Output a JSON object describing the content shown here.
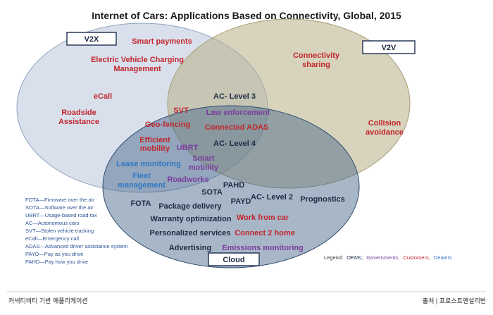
{
  "title": "Internet of Cars: Applications Based on Connectivity, Global, 2015",
  "circles": {
    "v2x": "V2X",
    "v2v": "V2V",
    "cloud": "Cloud"
  },
  "labels": {
    "smart_payments": "Smart payments",
    "ev_charging_1": "Electric Vehicle Charging",
    "ev_charging_2": "Management",
    "ecall": "eCall",
    "roadside_1": "Roadside",
    "roadside_2": "Assistance",
    "connectivity_1": "Connectivity",
    "connectivity_2": "sharing",
    "ac_level3": "AC- Level 3",
    "svt": "SVT",
    "law_enforcement": "Law enforcement",
    "geo_fencing": "Geo-fencing",
    "connected_adas": "Connected ADAS",
    "collision_1": "Collision",
    "collision_2": "avoidance",
    "efficient_1": "Efficient",
    "efficient_2": "mobility",
    "ubrt": "UBRT",
    "ac_level4": "AC- Level 4",
    "smart_mobility_1": "Smart",
    "smart_mobility_2": "mobility",
    "lease_monitoring": "Lease monitoring",
    "fleet_1": "Fleet",
    "fleet_2": "management",
    "roadworks": "Roadworks",
    "pahd": "PAHD",
    "sota": "SOTA",
    "payd": "PAYD",
    "ac_level2": "AC- Level 2",
    "prognostics": "Prognostics",
    "fota": "FOTA",
    "package_delivery": "Package delivery",
    "warranty": "Warranty optimization",
    "work_from_car": "Work from car",
    "personalized": "Personalized services",
    "connect_home": "Connect 2 home",
    "advertising": "Advertising",
    "emissions": "Emissions monitoring"
  },
  "abbreviations": [
    "FOTA—Firmware over the air",
    "SOTA—Software over the air",
    "UBRT—Usage-based road tax",
    "AC—Autonomous cars",
    "SVT—Stolen vehicle tracking",
    "eCall—Emergency call",
    "ADAS—Advanced driver assistance system",
    "PAYD—Pay as you drive",
    "PAHD—Pay how you drive"
  ],
  "legend": {
    "prefix": "Legend:",
    "oems": "OEMs;",
    "governments": "Governments,",
    "customers": "Customers,",
    "dealers": "Dealers"
  },
  "footer": {
    "left": "커넥티비티 기반 애플리케이션",
    "right": "출처 | 프로스트앤설리번"
  },
  "colors": {
    "oem": "#1f2a44",
    "government": "#7a3c9c",
    "customer": "#c0262c",
    "dealer": "#2f78c4",
    "v2x_fill": "#b9c7dc",
    "v2v_fill": "#b8af86",
    "cloud_fill": "#3f5f86"
  }
}
